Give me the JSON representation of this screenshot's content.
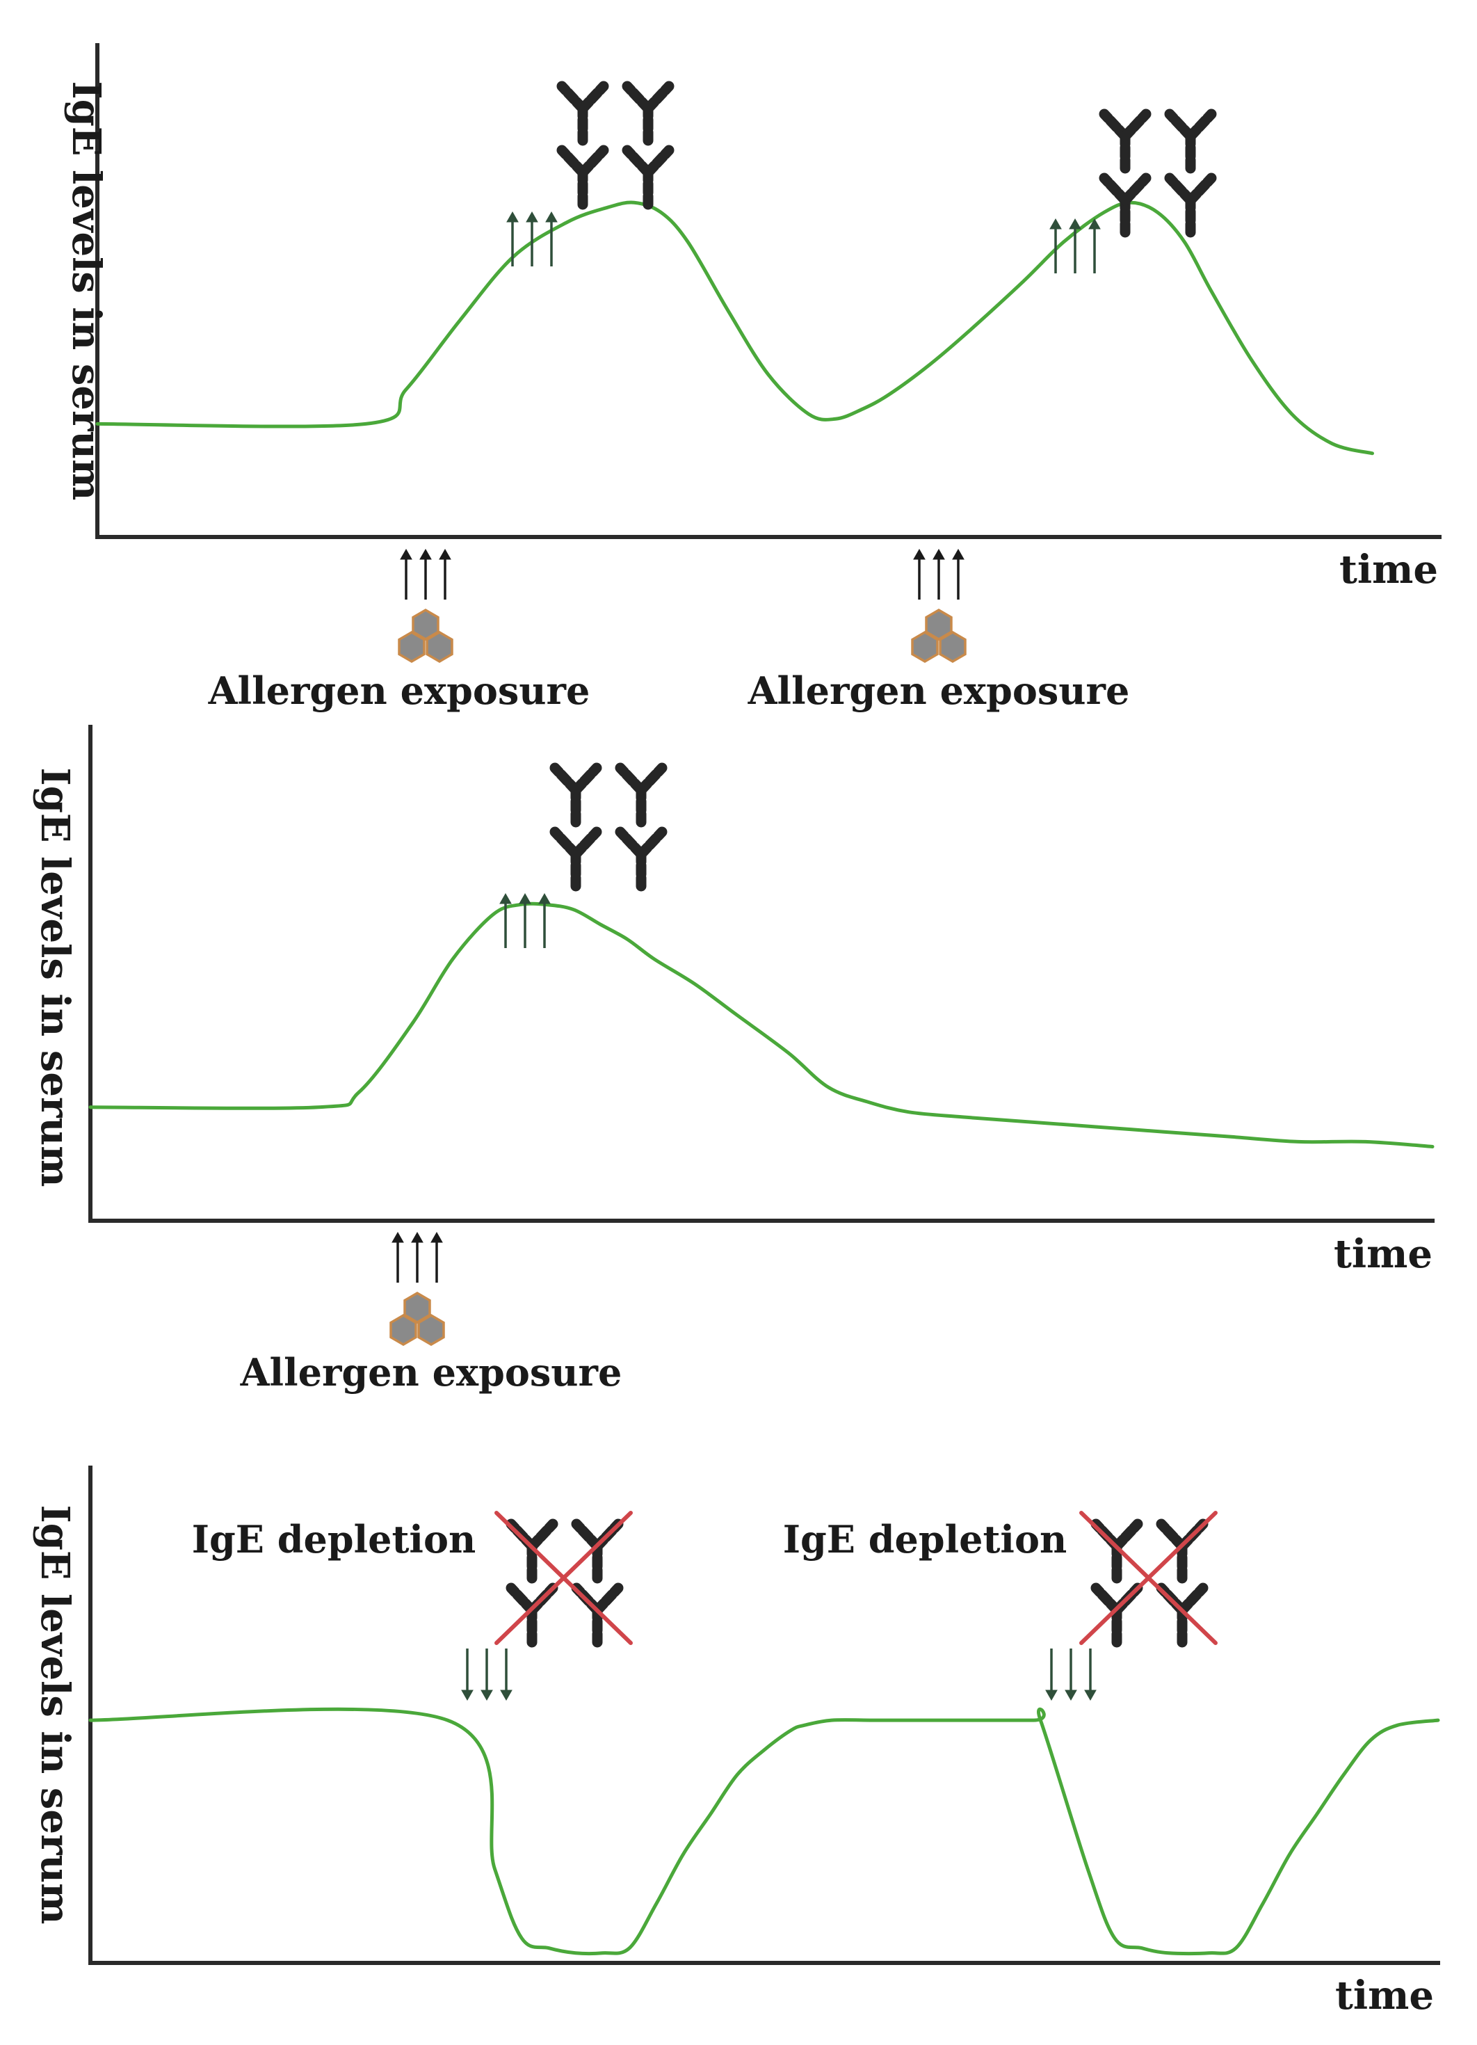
{
  "panels": [
    {
      "id": "repeated-exposure",
      "ylabel": "IgE levels in serum",
      "xlabel": "time",
      "exposure_label": "Allergen exposure",
      "events": [
        {
          "type": "allergen-exposure",
          "time": 0.19
        },
        {
          "type": "allergen-exposure",
          "time": 0.62
        }
      ],
      "curve": {
        "x": [
          0,
          0.2,
          0.23,
          0.27,
          0.31,
          0.35,
          0.38,
          0.4,
          0.42,
          0.44,
          0.47,
          0.5,
          0.53,
          0.55,
          0.57,
          0.59,
          0.62,
          0.65,
          0.69,
          0.72,
          0.75,
          0.77,
          0.79,
          0.81,
          0.83,
          0.86,
          0.89,
          0.92,
          0.95
        ],
        "y": [
          0.23,
          0.23,
          0.3,
          0.44,
          0.57,
          0.64,
          0.67,
          0.68,
          0.66,
          0.6,
          0.46,
          0.33,
          0.25,
          0.24,
          0.26,
          0.29,
          0.35,
          0.42,
          0.52,
          0.6,
          0.66,
          0.68,
          0.66,
          0.6,
          0.5,
          0.36,
          0.25,
          0.19,
          0.17
        ]
      },
      "curve_color": "#4aa83a"
    },
    {
      "id": "single-exposure",
      "ylabel": "IgE levels in serum",
      "xlabel": "time",
      "exposure_label": "Allergen exposure",
      "events": [
        {
          "type": "allergen-exposure",
          "time": 0.23
        }
      ],
      "curve": {
        "x": [
          0,
          0.17,
          0.2,
          0.24,
          0.27,
          0.3,
          0.32,
          0.34,
          0.36,
          0.38,
          0.4,
          0.42,
          0.45,
          0.48,
          0.52,
          0.55,
          0.58,
          0.61,
          0.65,
          0.7,
          0.75,
          0.8,
          0.85,
          0.9,
          0.95,
          1.0
        ],
        "y": [
          0.23,
          0.23,
          0.26,
          0.4,
          0.53,
          0.62,
          0.64,
          0.64,
          0.63,
          0.6,
          0.57,
          0.53,
          0.48,
          0.42,
          0.34,
          0.27,
          0.24,
          0.22,
          0.21,
          0.2,
          0.19,
          0.18,
          0.17,
          0.16,
          0.16,
          0.15
        ]
      },
      "curve_color": "#4aa83a"
    },
    {
      "id": "ige-depletion",
      "ylabel": "IgE levels in serum",
      "xlabel": "time",
      "depletion_label": "IgE depletion",
      "events": [
        {
          "type": "ige-depletion",
          "time": 0.29
        },
        {
          "type": "ige-depletion",
          "time": 0.73
        }
      ],
      "curve": {
        "x": [
          0,
          0.265,
          0.3,
          0.32,
          0.34,
          0.36,
          0.38,
          0.4,
          0.42,
          0.44,
          0.46,
          0.48,
          0.5,
          0.52,
          0.53,
          0.55,
          0.58,
          0.6,
          0.7,
          0.705,
          0.74,
          0.76,
          0.78,
          0.8,
          0.83,
          0.85,
          0.87,
          0.89,
          0.91,
          0.93,
          0.95,
          0.97,
          1.0
        ],
        "y": [
          0.49,
          0.49,
          0.19,
          0.05,
          0.03,
          0.02,
          0.02,
          0.03,
          0.12,
          0.22,
          0.3,
          0.38,
          0.43,
          0.47,
          0.48,
          0.49,
          0.49,
          0.49,
          0.49,
          0.49,
          0.19,
          0.05,
          0.03,
          0.02,
          0.02,
          0.03,
          0.12,
          0.22,
          0.3,
          0.38,
          0.45,
          0.48,
          0.49
        ]
      },
      "curve_color": "#4aa83a"
    }
  ],
  "colors": {
    "curve": "#4aa83a",
    "axis": "#2a2a2a",
    "antibody": "#262626",
    "up_arrow_green": "#2f4f3a",
    "down_arrow_green": "#2f4f3a",
    "exposure_arrow": "#1a1a1a",
    "allergen_fill": "#8a8a8a",
    "allergen_border": "#c98a4a",
    "cross": "#d0454a"
  },
  "icons": {
    "antibody": "antibody-icon",
    "allergen": "allergen-cluster-icon",
    "up_arrows": "triple-up-arrow-icon",
    "down_arrows": "triple-down-arrow-icon",
    "cross": "red-cross-icon"
  }
}
